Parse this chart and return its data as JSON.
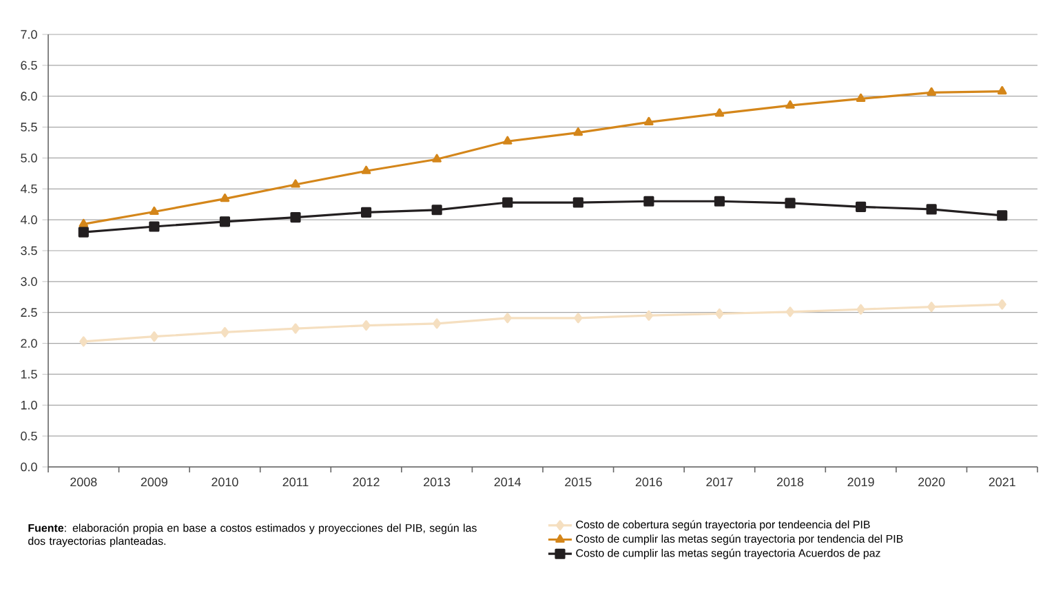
{
  "chart_data": {
    "type": "line",
    "categories": [
      "2008",
      "2009",
      "2010",
      "2011",
      "2012",
      "2013",
      "2014",
      "2015",
      "2016",
      "2017",
      "2018",
      "2019",
      "2020",
      "2021"
    ],
    "series": [
      {
        "name": "Costo de cobertura según trayectoria por tendeencia del PIB",
        "color": "#f5dfc0",
        "marker": "diamond",
        "values": [
          2.03,
          2.11,
          2.18,
          2.24,
          2.29,
          2.32,
          2.41,
          2.41,
          2.45,
          2.48,
          2.51,
          2.55,
          2.59,
          2.63
        ]
      },
      {
        "name": "Costo de cumplir las metas según trayectoria por tendencia del PIB",
        "color": "#d4861a",
        "marker": "triangle",
        "values": [
          3.93,
          4.13,
          4.34,
          4.57,
          4.79,
          4.98,
          5.27,
          5.41,
          5.58,
          5.72,
          5.85,
          5.96,
          6.06,
          6.08
        ]
      },
      {
        "name": "Costo de cumplir las metas según trayectoria Acuerdos de paz",
        "color": "#231f20",
        "marker": "square",
        "values": [
          3.8,
          3.89,
          3.97,
          4.04,
          4.12,
          4.16,
          4.28,
          4.28,
          4.3,
          4.3,
          4.27,
          4.21,
          4.17,
          4.07
        ]
      }
    ],
    "ylim": [
      0,
      7
    ],
    "yticks": [
      {
        "value": 0,
        "label": "0.0"
      },
      {
        "value": 0.5,
        "label": "0.5"
      },
      {
        "value": 1,
        "label": "1.0"
      },
      {
        "value": 1.5,
        "label": "1.5"
      },
      {
        "value": 2,
        "label": "2.0"
      },
      {
        "value": 2.5,
        "label": "2.5"
      },
      {
        "value": 3,
        "label": "3.0"
      },
      {
        "value": 3.5,
        "label": "3.5"
      },
      {
        "value": 4,
        "label": "4.0"
      },
      {
        "value": 4.5,
        "label": "4.5"
      },
      {
        "value": 5,
        "label": "5.0"
      },
      {
        "value": 5.5,
        "label": "5.5"
      },
      {
        "value": 6,
        "label": "6.0"
      },
      {
        "value": 6.5,
        "label": "6.5"
      },
      {
        "value": 7,
        "label": "7.0"
      }
    ],
    "grid": "y",
    "legend": "bottom",
    "line_style": "solid",
    "annotations": [
      "**Fuente**: elaboración propia en base a costos estimados y proyecciones del PIB, según las dos trayectorias planteadas."
    ]
  }
}
